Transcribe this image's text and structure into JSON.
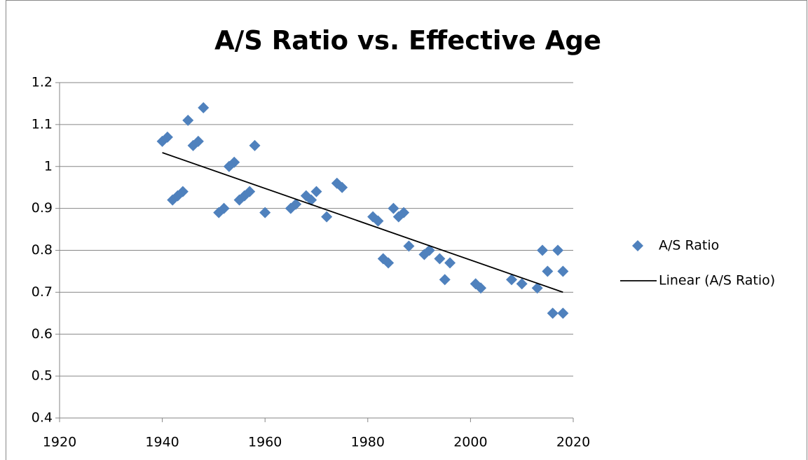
{
  "chart_data": {
    "type": "scatter",
    "title": "A/S Ratio vs. Effective Age",
    "series": [
      {
        "name": "A/S Ratio",
        "color": "#4f81bd",
        "mode": "markers",
        "x": [
          1940,
          1941,
          1942,
          1943,
          1944,
          1945,
          1946,
          1947,
          1948,
          1951,
          1952,
          1953,
          1954,
          1955,
          1956,
          1957,
          1958,
          1960,
          1965,
          1966,
          1968,
          1969,
          1970,
          1972,
          1974,
          1975,
          1981,
          1982,
          1983,
          1984,
          1985,
          1986,
          1987,
          1988,
          1991,
          1992,
          1994,
          1995,
          1996,
          2001,
          2002,
          2008,
          2010,
          2013,
          2014,
          2015,
          2016,
          2017,
          2018,
          2018
        ],
        "values": [
          1.06,
          1.07,
          0.92,
          0.93,
          0.94,
          1.11,
          1.05,
          1.06,
          1.14,
          0.89,
          0.9,
          1.0,
          1.01,
          0.92,
          0.93,
          0.94,
          1.05,
          0.89,
          0.9,
          0.91,
          0.93,
          0.92,
          0.94,
          0.88,
          0.96,
          0.95,
          0.88,
          0.87,
          0.78,
          0.77,
          0.9,
          0.88,
          0.89,
          0.81,
          0.79,
          0.8,
          0.78,
          0.73,
          0.77,
          0.72,
          0.71,
          0.73,
          0.72,
          0.71,
          0.8,
          0.75,
          0.65,
          0.8,
          0.65,
          0.75
        ]
      },
      {
        "name": "Linear (A/S Ratio)",
        "color": "#000000",
        "mode": "line",
        "x": [
          1940,
          2018
        ],
        "values": [
          1.033,
          0.7
        ]
      }
    ],
    "xlim": [
      1920,
      2020
    ],
    "xticks": [
      1920,
      1940,
      1960,
      1980,
      2000,
      2020
    ],
    "ylim": [
      0.4,
      1.2
    ],
    "yticks": [
      0.4,
      0.5,
      0.6,
      0.7,
      0.8,
      0.9,
      1,
      1.1,
      1.2
    ],
    "grid": true,
    "legend": "right"
  }
}
